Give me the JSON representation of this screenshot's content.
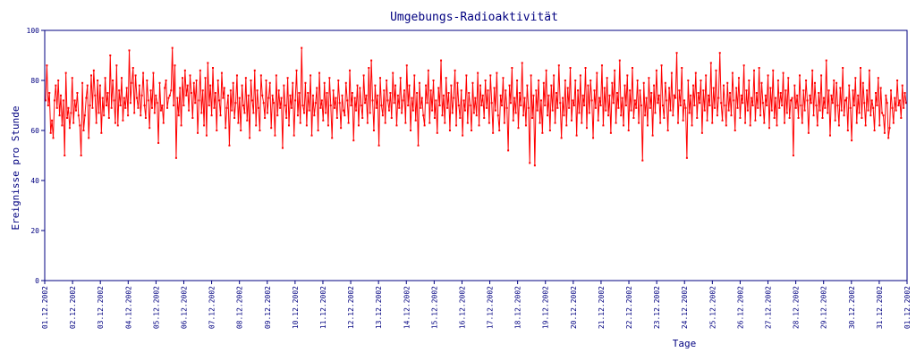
{
  "chart_data": {
    "type": "line",
    "title": "Umgebungs-Radioaktivität",
    "xlabel": "Tage",
    "ylabel": "Ereignisse pro Stunde",
    "ylim": [
      0,
      100
    ],
    "yticks": [
      0,
      20,
      40,
      60,
      80,
      100
    ],
    "xlim": [
      "01.12.2002",
      "31.12.2002"
    ],
    "x_tick_labels": [
      "01.12.2002",
      "02.12.2002",
      "03.12.2002",
      "04.12.2002",
      "05.12.2002",
      "06.12.2002",
      "07.12.2002",
      "08.12.2002",
      "09.12.2002",
      "10.12.2002",
      "11.12.2002",
      "12.12.2002",
      "13.12.2002",
      "14.12.2002",
      "15.12.2002",
      "16.12.2002",
      "17.12.2002",
      "18.12.2002",
      "19.12.2002",
      "20.12.2002",
      "21.12.2002",
      "22.12.2002",
      "23.12.2002",
      "24.12.2002",
      "25.12.2002",
      "26.12.2002",
      "27.12.2002",
      "28.12.2002",
      "29.12.2002",
      "30.12.2002",
      "31.12.2002",
      "01.12.2002"
    ],
    "grid": false,
    "series_color": "#ff0000",
    "frame_color": "#000080",
    "series": [
      {
        "values": [
          72,
          86,
          70,
          75,
          59,
          64,
          57,
          72,
          78,
          69,
          80,
          66,
          74,
          62,
          72,
          50,
          83,
          65,
          69,
          61,
          67,
          81,
          63,
          72,
          68,
          75,
          66,
          62,
          50,
          79,
          60,
          66,
          73,
          78,
          57,
          70,
          82,
          69,
          84,
          74,
          63,
          80,
          67,
          78,
          59,
          73,
          66,
          81,
          70,
          75,
          65,
          90,
          69,
          80,
          72,
          63,
          86,
          62,
          76,
          70,
          81,
          64,
          73,
          69,
          77,
          66,
          92,
          71,
          79,
          85,
          67,
          82,
          73,
          69,
          78,
          66,
          74,
          83,
          70,
          65,
          80,
          72,
          61,
          76,
          69,
          83,
          67,
          74,
          71,
          55,
          79,
          68,
          70,
          63,
          77,
          80,
          69,
          73,
          74,
          76,
          93,
          70,
          86,
          49,
          73,
          66,
          77,
          62,
          81,
          70,
          84,
          74,
          78,
          68,
          82,
          75,
          65,
          79,
          71,
          80,
          59,
          72,
          84,
          67,
          76,
          62,
          81,
          58,
          87,
          70,
          78,
          66,
          85,
          69,
          75,
          60,
          80,
          72,
          66,
          83,
          73,
          77,
          61,
          69,
          74,
          54,
          76,
          68,
          79,
          65,
          71,
          82,
          63,
          73,
          60,
          78,
          70,
          67,
          81,
          64,
          74,
          57,
          80,
          72,
          67,
          84,
          62,
          76,
          69,
          60,
          82,
          74,
          71,
          65,
          80,
          67,
          73,
          79,
          61,
          74,
          71,
          58,
          82,
          66,
          76,
          69,
          73,
          53,
          78,
          70,
          65,
          81,
          62,
          74,
          69,
          79,
          58,
          72,
          84,
          66,
          75,
          63,
          93,
          70,
          67,
          79,
          62,
          75,
          68,
          82,
          58,
          74,
          66,
          71,
          77,
          60,
          83,
          69,
          72,
          64,
          79,
          67,
          75,
          62,
          81,
          70,
          57,
          76,
          69,
          73,
          65,
          80,
          71,
          61,
          74,
          68,
          66,
          79,
          72,
          63,
          84,
          70,
          75,
          56,
          73,
          68,
          78,
          62,
          77,
          70,
          65,
          82,
          71,
          74,
          63,
          85,
          67,
          88,
          72,
          60,
          78,
          69,
          74,
          54,
          81,
          70,
          66,
          76,
          63,
          80,
          72,
          68,
          75,
          65,
          83,
          71,
          78,
          62,
          74,
          69,
          81,
          67,
          72,
          76,
          63,
          86,
          70,
          78,
          60,
          73,
          68,
          82,
          64,
          75,
          54,
          79,
          69,
          73,
          66,
          62,
          78,
          71,
          84,
          63,
          76,
          68,
          80,
          65,
          72,
          59,
          77,
          70,
          88,
          66,
          74,
          63,
          81,
          69,
          75,
          60,
          78,
          67,
          73,
          84,
          62,
          79,
          70,
          65,
          76,
          58,
          72,
          68,
          82,
          63,
          75,
          70,
          60,
          79,
          67,
          73,
          66,
          83,
          62,
          78,
          70,
          74,
          65,
          80,
          69,
          76,
          63,
          82,
          71,
          59,
          77,
          68,
          83,
          66,
          60,
          74,
          70,
          81,
          63,
          76,
          69,
          52,
          78,
          71,
          85,
          64,
          73,
          67,
          80,
          61,
          75,
          70,
          87,
          66,
          73,
          62,
          78,
          69,
          47,
          82,
          65,
          74,
          46,
          76,
          68,
          80,
          63,
          72,
          59,
          79,
          70,
          84,
          66,
          74,
          60,
          78,
          68,
          82,
          63,
          75,
          69,
          86,
          71,
          57,
          73,
          66,
          80,
          62,
          77,
          69,
          85,
          64,
          72,
          70,
          80,
          58,
          76,
          67,
          82,
          63,
          74,
          70,
          85,
          61,
          78,
          67,
          80,
          72,
          57,
          76,
          69,
          83,
          64,
          73,
          70,
          86,
          62,
          77,
          68,
          81,
          66,
          74,
          59,
          79,
          71,
          84,
          63,
          75,
          69,
          88,
          66,
          73,
          62,
          78,
          70,
          82,
          60,
          76,
          68,
          85,
          65,
          72,
          69,
          80,
          63,
          76,
          70,
          48,
          79,
          66,
          73,
          62,
          81,
          69,
          75,
          58,
          78,
          67,
          84,
          71,
          74,
          63,
          86,
          70,
          65,
          79,
          72,
          60,
          77,
          68,
          83,
          66,
          74,
          73,
          91,
          63,
          76,
          70,
          85,
          64,
          72,
          69,
          49,
          80,
          67,
          74,
          62,
          78,
          70,
          83,
          65,
          75,
          71,
          80,
          59,
          76,
          68,
          82,
          64,
          74,
          70,
          87,
          63,
          77,
          69,
          84,
          66,
          73,
          91,
          71,
          64,
          78,
          70,
          62,
          79,
          68,
          75,
          66,
          83,
          72,
          60,
          77,
          69,
          81,
          65,
          74,
          71,
          86,
          63,
          76,
          68,
          80,
          62,
          73,
          70,
          84,
          64,
          75,
          69,
          85,
          66,
          79,
          71,
          63,
          74,
          70,
          82,
          61,
          77,
          68,
          84,
          65,
          73,
          62,
          80,
          69,
          75,
          70,
          83,
          63,
          76,
          67,
          81,
          65,
          72,
          73,
          50,
          78,
          69,
          74,
          65,
          82,
          70,
          63,
          76,
          68,
          80,
          72,
          59,
          74,
          71,
          84,
          66,
          79,
          70,
          62,
          75,
          68,
          82,
          65,
          73,
          69,
          88,
          67,
          76,
          58,
          74,
          71,
          80,
          64,
          79,
          70,
          62,
          77,
          68,
          85,
          66,
          72,
          73,
          60,
          78,
          69,
          56,
          76,
          70,
          81,
          63,
          74,
          67,
          85,
          65,
          79,
          71,
          62,
          76,
          68,
          84,
          66,
          72,
          69,
          60,
          75,
          70,
          81,
          62,
          77,
          67,
          66,
          59,
          74,
          71,
          57,
          61,
          76,
          69,
          63,
          73,
          68,
          80,
          70,
          72,
          65,
          78,
          69,
          75,
          71
        ]
      }
    ]
  }
}
